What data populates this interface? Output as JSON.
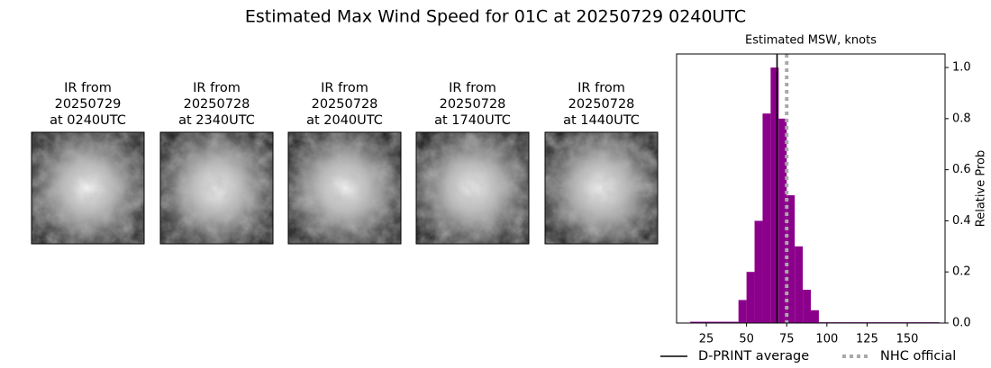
{
  "title": "Estimated Max Wind Speed for 01C at 20250729 0240UTC",
  "panels": [
    {
      "lines": [
        "IR from",
        "20250729",
        "at 0240UTC"
      ]
    },
    {
      "lines": [
        "IR from",
        "20250728",
        "at 2340UTC"
      ]
    },
    {
      "lines": [
        "IR from",
        "20250728",
        "at 2040UTC"
      ]
    },
    {
      "lines": [
        "IR from",
        "20250728",
        "at 1740UTC"
      ]
    },
    {
      "lines": [
        "IR from",
        "20250728",
        "at 1440UTC"
      ]
    }
  ],
  "chart_data": {
    "type": "histogram",
    "title": "Estimated MSW, knots",
    "y_label": "Relative Prob",
    "color": "#8b008b",
    "bins": [
      15,
      20,
      25,
      30,
      35,
      40,
      45,
      50,
      55,
      60,
      65,
      70,
      75,
      80,
      85,
      90,
      95,
      100,
      105,
      110,
      115,
      120,
      125,
      130,
      135,
      140,
      145,
      150,
      155,
      160,
      165,
      170
    ],
    "values": [
      0.005,
      0.005,
      0.005,
      0.005,
      0.005,
      0.005,
      0.09,
      0.2,
      0.4,
      0.82,
      1.0,
      0.8,
      0.5,
      0.3,
      0.13,
      0.05,
      0.003,
      0.003,
      0.003,
      0.003,
      0.003,
      0.003,
      0.003,
      0.003,
      0.003,
      0.003,
      0.003,
      0.003,
      0.003,
      0.003,
      0.003
    ],
    "xlim": [
      6.5,
      173.5
    ],
    "xticks": [
      25,
      50,
      75,
      100,
      125,
      150
    ],
    "ylim": [
      0,
      1.053
    ],
    "yticks": [
      {
        "value": 0,
        "label": "0.0"
      },
      0.2,
      0.4,
      0.6,
      0.8,
      {
        "value": 1,
        "label": "1.0"
      }
    ],
    "vlines": [
      {
        "name": "D-PRINT average",
        "value": 69,
        "color": "#000000",
        "style": "solid"
      },
      {
        "name": "NHC official",
        "value": 75,
        "color": "#a9a9a9",
        "style": "dotted"
      }
    ]
  }
}
